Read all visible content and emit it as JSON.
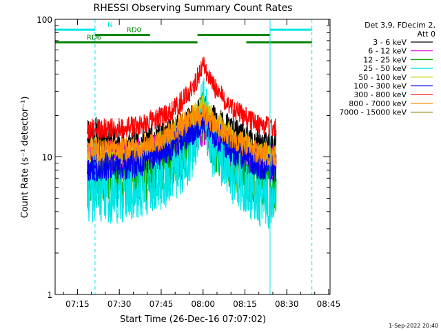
{
  "chart_data": {
    "type": "line",
    "title": "RHESSI Observing Summary Count Rates",
    "xlabel": "Start Time (26-Dec-16 07:07:02)",
    "ylabel": "Count Rate (s⁻¹ detector⁻¹)",
    "x_unit": "minutes after 07:07:02",
    "xlim": [
      0,
      98.5
    ],
    "ylim": [
      1,
      100
    ],
    "yscale": "log",
    "x_ticks": [
      {
        "x": 8,
        "label": "07:15"
      },
      {
        "x": 23,
        "label": "07:30"
      },
      {
        "x": 38,
        "label": "07:45"
      },
      {
        "x": 53,
        "label": "08:00"
      },
      {
        "x": 68,
        "label": "08:15"
      },
      {
        "x": 83,
        "label": "08:30"
      },
      {
        "x": 98,
        "label": "08:45"
      }
    ],
    "y_ticks": [
      {
        "y": 1,
        "label": "1"
      },
      {
        "y": 10,
        "label": "10"
      },
      {
        "y": 100,
        "label": "100"
      }
    ],
    "legend_header": [
      "Det 3,9, FDecim 2,",
      "Att 0"
    ],
    "legend_position": "right",
    "series": [
      {
        "name": "3 - 6 keV",
        "color": "#000000",
        "points": [
          [
            15,
            15
          ],
          [
            22,
            12
          ],
          [
            30,
            12.5
          ],
          [
            38,
            13.5
          ],
          [
            45,
            16
          ],
          [
            50,
            19
          ],
          [
            53,
            22
          ],
          [
            56,
            19
          ],
          [
            62,
            15.5
          ],
          [
            68,
            13
          ],
          [
            74,
            12
          ],
          [
            79,
            11.5
          ]
        ],
        "noise": 0.28,
        "seed": 11
      },
      {
        "name": "6 - 12 keV",
        "color": "#dd00dd",
        "points": [
          [
            15,
            10
          ],
          [
            24,
            9.8
          ],
          [
            34,
            10.5
          ],
          [
            42,
            12
          ],
          [
            48,
            14.5
          ],
          [
            53,
            16
          ],
          [
            58,
            12.5
          ],
          [
            64,
            10.5
          ],
          [
            72,
            9.5
          ],
          [
            79,
            9
          ]
        ],
        "noise": 0.3,
        "seed": 23
      },
      {
        "name": "12 - 25 keV",
        "color": "#00aa00",
        "points": [
          [
            15,
            7
          ],
          [
            22,
            6.5
          ],
          [
            30,
            7
          ],
          [
            38,
            8
          ],
          [
            44,
            9.5
          ],
          [
            50,
            13
          ],
          [
            53,
            20
          ],
          [
            56,
            13
          ],
          [
            62,
            9.5
          ],
          [
            68,
            7.5
          ],
          [
            74,
            6.5
          ],
          [
            79,
            5.8
          ]
        ],
        "noise": 0.45,
        "seed": 37
      },
      {
        "name": "25 - 50 keV",
        "color": "#00e5e5",
        "points": [
          [
            15,
            5.5
          ],
          [
            22,
            5.3
          ],
          [
            30,
            5.6
          ],
          [
            38,
            6.5
          ],
          [
            44,
            8
          ],
          [
            50,
            12
          ],
          [
            53,
            26
          ],
          [
            56,
            12
          ],
          [
            62,
            8
          ],
          [
            68,
            6
          ],
          [
            74,
            5
          ],
          [
            79,
            4.5
          ]
        ],
        "noise": 0.5,
        "seed": 41
      },
      {
        "name": "50 - 100 keV",
        "color": "#cccc00",
        "points": [
          [
            15,
            10
          ],
          [
            22,
            9.8
          ],
          [
            30,
            10.3
          ],
          [
            38,
            12.5
          ],
          [
            44,
            15.5
          ],
          [
            50,
            20
          ],
          [
            53,
            23
          ],
          [
            56,
            19
          ],
          [
            62,
            15
          ],
          [
            68,
            12
          ],
          [
            74,
            10.5
          ],
          [
            79,
            9.5
          ]
        ],
        "noise": 0.22,
        "seed": 53
      },
      {
        "name": "100 - 300 keV",
        "color": "#0000ee",
        "points": [
          [
            15,
            8.5
          ],
          [
            22,
            8.4
          ],
          [
            30,
            9
          ],
          [
            38,
            10.5
          ],
          [
            44,
            13
          ],
          [
            50,
            16
          ],
          [
            53,
            18.5
          ],
          [
            56,
            15.5
          ],
          [
            62,
            12
          ],
          [
            68,
            9.8
          ],
          [
            74,
            8.6
          ],
          [
            79,
            8.2
          ]
        ],
        "noise": 0.25,
        "seed": 67
      },
      {
        "name": "300 - 800 keV",
        "color": "#ff0000",
        "points": [
          [
            15,
            16
          ],
          [
            22,
            16
          ],
          [
            30,
            17
          ],
          [
            38,
            19.5
          ],
          [
            44,
            23.5
          ],
          [
            50,
            33
          ],
          [
            53,
            48
          ],
          [
            56,
            34
          ],
          [
            62,
            24
          ],
          [
            68,
            19.5
          ],
          [
            74,
            17
          ],
          [
            79,
            16.5
          ]
        ],
        "noise": 0.18,
        "seed": 79
      },
      {
        "name": "800 - 7000 keV",
        "color": "#ff8800",
        "points": [
          [
            15,
            11.5
          ],
          [
            22,
            11.3
          ],
          [
            30,
            11.8
          ],
          [
            38,
            13.5
          ],
          [
            44,
            16.5
          ],
          [
            50,
            20
          ],
          [
            53,
            20.5
          ],
          [
            56,
            18
          ],
          [
            62,
            14.5
          ],
          [
            68,
            12
          ],
          [
            74,
            10.5
          ],
          [
            79,
            10
          ]
        ],
        "noise": 0.2,
        "seed": 83
      },
      {
        "name": "7000 - 15000 keV",
        "color": "#808000",
        "points": [],
        "noise": 0,
        "seed": 0
      }
    ],
    "bars": [
      {
        "label": "N",
        "color": "#00e5e5",
        "y": 84,
        "segments": [
          [
            0,
            14.3
          ],
          [
            77,
            92
          ]
        ]
      },
      {
        "label": "RD0",
        "color": "#008000",
        "y": 77,
        "segments": [
          [
            14.3,
            34
          ],
          [
            51,
            77
          ]
        ]
      },
      {
        "label": "RD6",
        "color": "#008000",
        "y": 68,
        "segments": [
          [
            0,
            34
          ],
          [
            34,
            51
          ],
          [
            68.5,
            92
          ]
        ]
      }
    ],
    "vertical_lines": [
      {
        "x": 0,
        "color": "#00e5e5",
        "style": "solid"
      },
      {
        "x": 14.3,
        "color": "#00e5e5",
        "style": "dashed"
      },
      {
        "x": 77,
        "color": "#00e5e5",
        "style": "solid"
      },
      {
        "x": 92,
        "color": "#00e5e5",
        "style": "dashed"
      }
    ],
    "data_range": [
      11.5,
      79.2
    ]
  },
  "footer_timestamp": "1-Sep-2022 20:40",
  "colors": {
    "background": "#ffffff",
    "axes": "#000000"
  }
}
